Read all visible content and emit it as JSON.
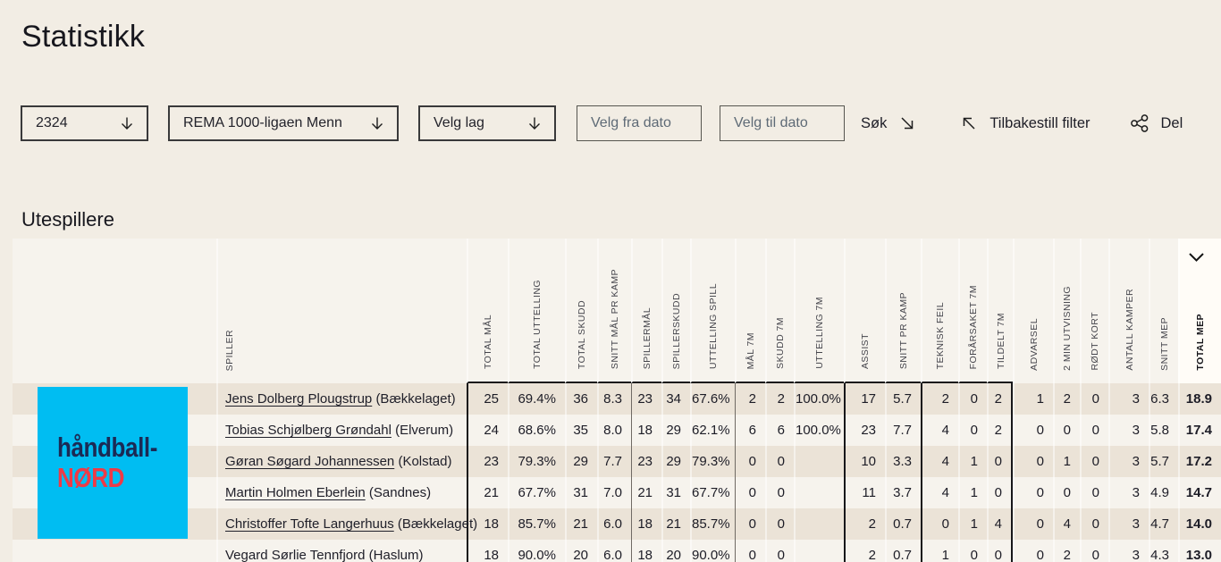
{
  "page": {
    "title": "Statistikk"
  },
  "filters": {
    "season": {
      "value": "2324"
    },
    "league": {
      "value": "REMA 1000-ligaen Menn"
    },
    "team": {
      "placeholder": "Velg lag"
    },
    "date_from": {
      "placeholder": "Velg fra dato"
    },
    "date_to": {
      "placeholder": "Velg til dato"
    },
    "search_label": "Søk",
    "reset_label": "Tilbakestill filter",
    "share_label": "Del"
  },
  "icons": {
    "season_dropdown": "arrow-down",
    "league_dropdown": "arrow-down",
    "team_dropdown": "arrow-down",
    "search": "arrow-down-right",
    "reset": "arrow-up-left",
    "share": "share-nodes",
    "table_collapse": "chevron-down"
  },
  "section": {
    "title": "Utespillere"
  },
  "logo": {
    "line1": "håndball-",
    "line2": "NØRD",
    "bg_color": "#00bdf2",
    "line1_color": "#1b2a55",
    "line2_color": "#ee3a46"
  },
  "table": {
    "columns": [
      {
        "label": "SPILLER"
      },
      {
        "label": "TOTAL MÅL"
      },
      {
        "label": "TOTAL UTTELLING"
      },
      {
        "label": "TOTAL SKUDD"
      },
      {
        "label": "SNITT MÅL PR KAMP"
      },
      {
        "label": "SPILLERMÅL"
      },
      {
        "label": "SPILLERSKUDD"
      },
      {
        "label": "UTTELLING SPILL"
      },
      {
        "label": "MÅL 7M"
      },
      {
        "label": "SKUDD 7M"
      },
      {
        "label": "UTTELLING 7M"
      },
      {
        "label": "ASSIST"
      },
      {
        "label": "SNITT PR KAMP"
      },
      {
        "label": "TEKNISK FEIL"
      },
      {
        "label": "FORÅRSAKET 7M"
      },
      {
        "label": "TILDELT 7M"
      },
      {
        "label": "ADVARSEL"
      },
      {
        "label": "2 MIN UTVISNING"
      },
      {
        "label": "RØDT KORT"
      },
      {
        "label": "ANTALL KAMPER"
      },
      {
        "label": "SNITT MEP"
      },
      {
        "label": "TOTAL MEP"
      }
    ],
    "rows": [
      {
        "player": "Jens Dolberg Plougstrup",
        "team": "(Bækkelaget)",
        "values": [
          "25",
          "69.4%",
          "36",
          "8.3",
          "23",
          "34",
          "67.6%",
          "2",
          "2",
          "100.0%",
          "17",
          "5.7",
          "2",
          "0",
          "2",
          "1",
          "2",
          "0",
          "3",
          "6.3",
          "18.9"
        ]
      },
      {
        "player": "Tobias Schjølberg Grøndahl",
        "team": "(Elverum)",
        "values": [
          "24",
          "68.6%",
          "35",
          "8.0",
          "18",
          "29",
          "62.1%",
          "6",
          "6",
          "100.0%",
          "23",
          "7.7",
          "4",
          "0",
          "2",
          "0",
          "0",
          "0",
          "3",
          "5.8",
          "17.4"
        ]
      },
      {
        "player": "Gøran Søgard Johannessen",
        "team": "(Kolstad)",
        "values": [
          "23",
          "79.3%",
          "29",
          "7.7",
          "23",
          "29",
          "79.3%",
          "0",
          "0",
          "",
          "10",
          "3.3",
          "4",
          "1",
          "0",
          "0",
          "1",
          "0",
          "3",
          "5.7",
          "17.2"
        ]
      },
      {
        "player": "Martin Holmen Eberlein",
        "team": "(Sandnes)",
        "values": [
          "21",
          "67.7%",
          "31",
          "7.0",
          "21",
          "31",
          "67.7%",
          "0",
          "0",
          "",
          "11",
          "3.7",
          "4",
          "1",
          "0",
          "0",
          "0",
          "0",
          "3",
          "4.9",
          "14.7"
        ]
      },
      {
        "player": "Christoffer Tofte Langerhuus",
        "team": "(Bækkelaget)",
        "values": [
          "18",
          "85.7%",
          "21",
          "6.0",
          "18",
          "21",
          "85.7%",
          "0",
          "0",
          "",
          "2",
          "0.7",
          "0",
          "1",
          "4",
          "0",
          "4",
          "0",
          "3",
          "4.7",
          "14.0"
        ]
      },
      {
        "player": "Vegard Sørlie Tennfjord",
        "team": "(Haslum)",
        "values": [
          "18",
          "90.0%",
          "20",
          "6.0",
          "18",
          "20",
          "90.0%",
          "0",
          "0",
          "",
          "2",
          "0.7",
          "1",
          "0",
          "0",
          "0",
          "2",
          "0",
          "3",
          "4.3",
          "13.0"
        ]
      }
    ]
  }
}
